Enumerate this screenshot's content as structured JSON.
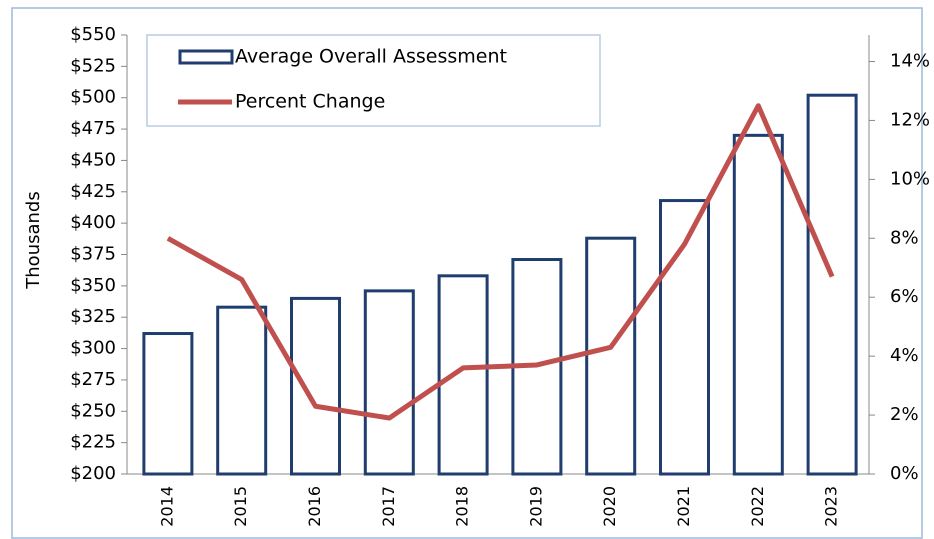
{
  "chart_data": {
    "type": "combo",
    "y_label": "Thousands",
    "categories": [
      "2014",
      "2015",
      "2016",
      "2017",
      "2018",
      "2019",
      "2020",
      "2021",
      "2022",
      "2023"
    ],
    "series": [
      {
        "name": "Average Overall Assessment",
        "type": "bar",
        "color": "#1f3d6e",
        "axis": "y",
        "values": [
          312,
          333,
          340,
          346,
          358,
          371,
          388,
          418,
          470,
          502
        ]
      },
      {
        "name": "Percent Change",
        "type": "line",
        "color": "#c0504d",
        "axis": "y2",
        "values": [
          8.0,
          6.6,
          2.3,
          1.9,
          3.6,
          3.7,
          4.3,
          7.8,
          12.5,
          6.7
        ]
      }
    ],
    "ylim": [
      200,
      550
    ],
    "yticks": [
      {
        "value": 200,
        "label": "$200"
      },
      {
        "value": 225,
        "label": "$225"
      },
      {
        "value": 250,
        "label": "$250"
      },
      {
        "value": 275,
        "label": "$275"
      },
      {
        "value": 300,
        "label": "$300"
      },
      {
        "value": 325,
        "label": "$325"
      },
      {
        "value": 350,
        "label": "$350"
      },
      {
        "value": 375,
        "label": "$375"
      },
      {
        "value": 400,
        "label": "$400"
      },
      {
        "value": 425,
        "label": "$425"
      },
      {
        "value": 450,
        "label": "$450"
      },
      {
        "value": 475,
        "label": "$475"
      },
      {
        "value": 500,
        "label": "$500"
      },
      {
        "value": 525,
        "label": "$525"
      },
      {
        "value": 550,
        "label": "$550"
      }
    ],
    "y2lim": [
      0,
      14.9
    ],
    "y2ticks": [
      {
        "value": 0,
        "label": "0%"
      },
      {
        "value": 2,
        "label": "2%"
      },
      {
        "value": 4,
        "label": "4%"
      },
      {
        "value": 6,
        "label": "6%"
      },
      {
        "value": 8,
        "label": "8%"
      },
      {
        "value": 10,
        "label": "10%"
      },
      {
        "value": 12,
        "label": "12%"
      },
      {
        "value": 14,
        "label": "14%"
      }
    ],
    "grid": false,
    "legend_position": "top-left"
  }
}
